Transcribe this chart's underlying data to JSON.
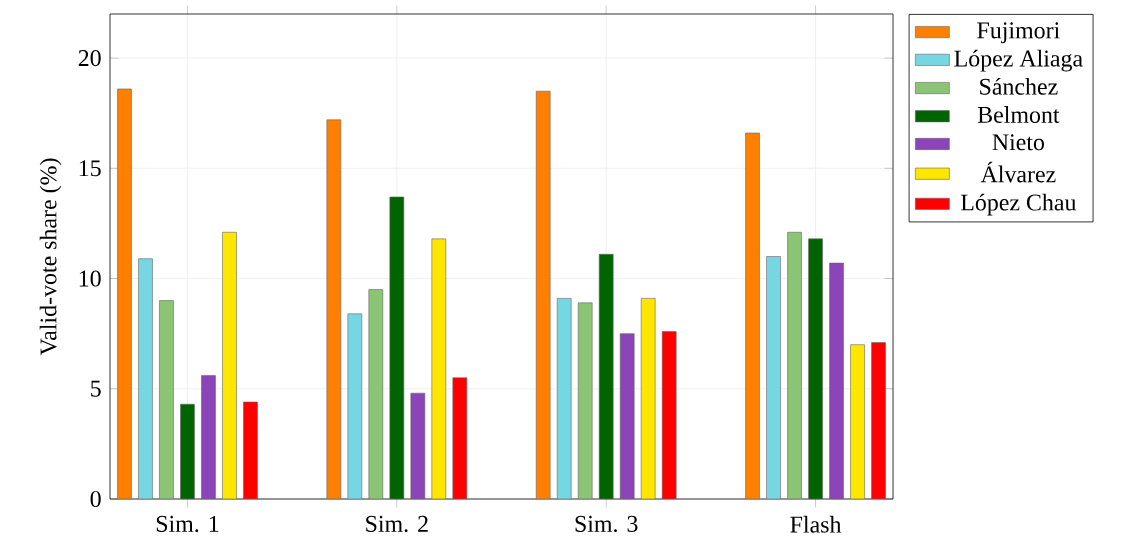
{
  "chart_data": {
    "type": "bar",
    "ylabel": "Valid-vote share (%)",
    "categories": [
      "Sim. 1",
      "Sim. 2",
      "Sim. 3",
      "Flash"
    ],
    "series": [
      {
        "name": "Fujimori",
        "color": "#ff7f00",
        "values": [
          18.6,
          17.2,
          18.5,
          16.6
        ]
      },
      {
        "name": "López Aliaga",
        "color": "#76d7e3",
        "values": [
          10.9,
          8.4,
          9.1,
          11.0
        ]
      },
      {
        "name": "Sánchez",
        "color": "#8cc476",
        "values": [
          9.0,
          9.5,
          8.9,
          12.1
        ]
      },
      {
        "name": "Belmont",
        "color": "#006400",
        "values": [
          4.3,
          13.7,
          11.1,
          11.8
        ]
      },
      {
        "name": "Nieto",
        "color": "#8b45b8",
        "values": [
          5.6,
          4.8,
          7.5,
          10.7
        ]
      },
      {
        "name": "Álvarez",
        "color": "#ffe600",
        "values": [
          12.1,
          11.8,
          9.1,
          7.0
        ]
      },
      {
        "name": "López Chau",
        "color": "#ff0000",
        "values": [
          4.4,
          5.5,
          7.6,
          7.1
        ]
      }
    ],
    "ylim": [
      0,
      22
    ],
    "yticks": [
      0,
      5,
      10,
      15,
      20
    ],
    "grid": true,
    "legend": "right"
  }
}
